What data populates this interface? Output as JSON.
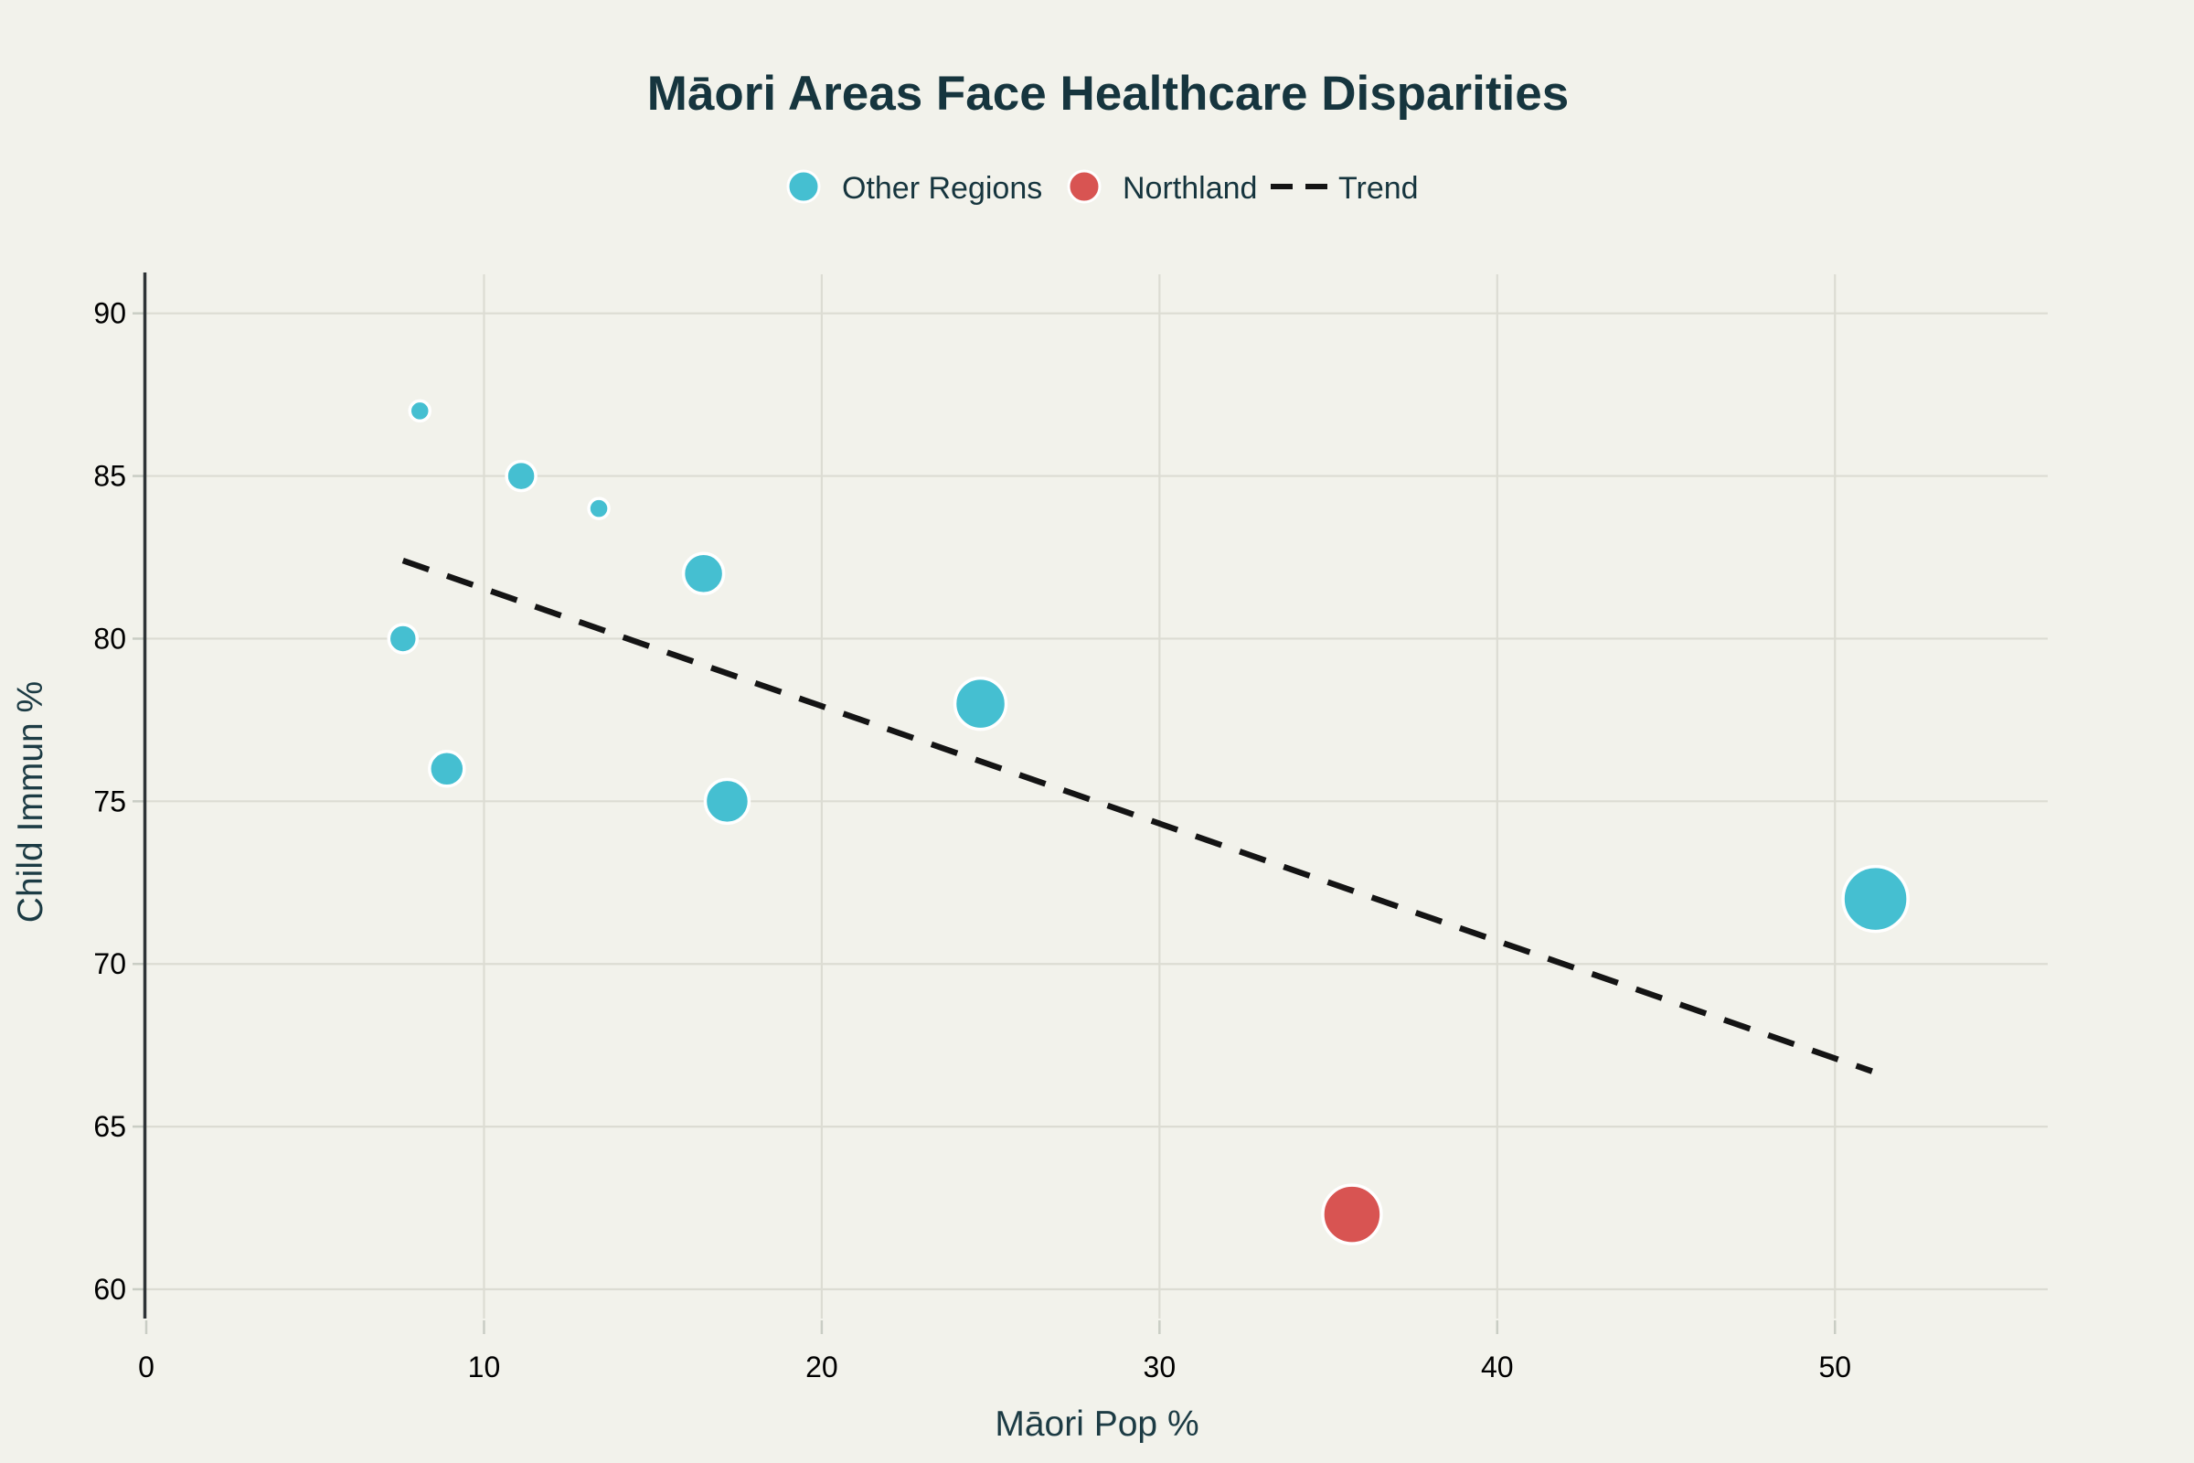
{
  "title": "Māori Areas Face Healthcare Disparities",
  "legend": {
    "items": [
      {
        "label": "Other Regions",
        "marker": "circle",
        "color": "#45bfd1"
      },
      {
        "label": "Northland",
        "marker": "circle",
        "color": "#d85452"
      },
      {
        "label": "Trend",
        "marker": "dash",
        "color": "#141414"
      }
    ]
  },
  "chart_data": {
    "type": "scatter",
    "title": "Māori Areas Face Healthcare Disparities",
    "xlabel": "Māori Pop %",
    "ylabel": "Child Immun %",
    "xlim": [
      0,
      56.3
    ],
    "ylim": [
      59.1,
      91.2
    ],
    "xticks": [
      0,
      10,
      20,
      30,
      40,
      50
    ],
    "yticks": [
      60,
      65,
      70,
      75,
      80,
      85,
      90
    ],
    "grid": true,
    "legend_position": "top-center",
    "series": [
      {
        "name": "Other Regions",
        "type": "bubble",
        "color": "#45bfd1",
        "points": [
          {
            "x": 8.1,
            "y": 87,
            "r": 11
          },
          {
            "x": 11.1,
            "y": 85,
            "r": 16
          },
          {
            "x": 13.4,
            "y": 84,
            "r": 11
          },
          {
            "x": 16.5,
            "y": 82,
            "r": 22
          },
          {
            "x": 7.6,
            "y": 80,
            "r": 15.5
          },
          {
            "x": 8.9,
            "y": 76,
            "r": 19
          },
          {
            "x": 17.2,
            "y": 75,
            "r": 24
          },
          {
            "x": 24.7,
            "y": 78,
            "r": 28
          },
          {
            "x": 51.2,
            "y": 72,
            "r": 35.5
          }
        ]
      },
      {
        "name": "Northland",
        "type": "bubble",
        "color": "#d85452",
        "points": [
          {
            "x": 35.7,
            "y": 62.3,
            "r": 32
          }
        ]
      },
      {
        "name": "Trend",
        "type": "line",
        "dashed": true,
        "color": "#141414",
        "points": [
          {
            "x": 7.6,
            "y": 82.4
          },
          {
            "x": 51.1,
            "y": 66.7
          }
        ]
      }
    ]
  },
  "colors": {
    "background": "#f2f2eb",
    "grid": "#dcdcd3",
    "axis_line": "#2e3336",
    "tick": "#c9cdc4",
    "tick_label": "#657075",
    "text": "#16353e",
    "other_regions": "#45bfd1",
    "northland": "#d85452",
    "trend": "#141414"
  }
}
